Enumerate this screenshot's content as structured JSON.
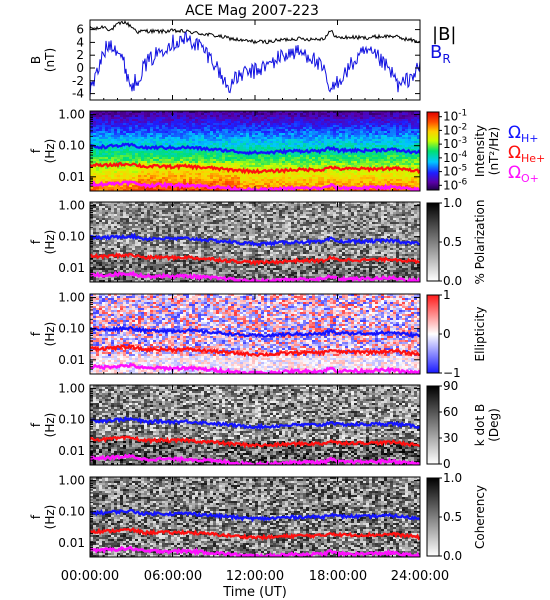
{
  "figure_title": "ACE Mag 2007-223",
  "x_tick_labels": [
    "00:00:00",
    "06:00:00",
    "12:00:00",
    "18:00:00",
    "24:00:00"
  ],
  "x_axis_label": "Time (UT)",
  "legend": {
    "b_magnitude": "|B|",
    "b_radial": "B",
    "b_radial_sub": "R",
    "omega_h": "Ω",
    "omega_h_sub": "H+",
    "omega_he": "Ω",
    "omega_he_sub": "He+",
    "omega_o": "Ω",
    "omega_o_sub": "O+"
  },
  "colors": {
    "b_magnitude": "#000000",
    "b_radial": "#1010e0",
    "omega_h": "#1414ff",
    "omega_he": "#ff1010",
    "omega_o": "#ff10ff"
  },
  "chart_data": [
    {
      "type": "line",
      "panel": "field",
      "ylabel": "B",
      "ylabel_unit": "(nT)",
      "y_tick_labels": [
        "6",
        "4",
        "2",
        "0",
        "-2",
        "-4"
      ],
      "ylim": [
        -5,
        7.5
      ],
      "xlim_hours": [
        0,
        24
      ],
      "series": [
        {
          "name": "|B|",
          "color": "#000000",
          "x_hours": [
            0,
            0.5,
            1,
            1.5,
            2,
            2.5,
            3,
            3.5,
            4,
            5,
            6,
            7,
            8,
            9,
            10,
            11,
            12,
            13,
            14,
            15,
            16,
            17,
            17.5,
            18,
            19,
            20,
            21,
            22,
            23,
            24
          ],
          "values": [
            6.3,
            6.1,
            6.5,
            5.9,
            6.8,
            7.2,
            6.5,
            5.6,
            5.8,
            5.7,
            5.8,
            5.7,
            5.4,
            5.1,
            4.7,
            4.3,
            4.1,
            4.1,
            4.4,
            4.6,
            4.5,
            4.6,
            5.8,
            4.7,
            4.8,
            4.7,
            4.9,
            5.0,
            4.5,
            4.1
          ]
        },
        {
          "name": "B",
          "color": "#1010e0",
          "x_hours": [
            0,
            0.5,
            1,
            1.5,
            2,
            2.5,
            3,
            3.5,
            4,
            4.5,
            5,
            5.5,
            6,
            7,
            8,
            9,
            9.5,
            10,
            10.5,
            11,
            12,
            13,
            14,
            15,
            16,
            17,
            17.5,
            18,
            18.5,
            19,
            20,
            21,
            22,
            22.5,
            23,
            24
          ],
          "values": [
            -3.5,
            -1.0,
            2.5,
            4.0,
            3.0,
            0.5,
            -3.0,
            -1.5,
            0.5,
            1.5,
            2.5,
            3.5,
            4.0,
            4.5,
            3.5,
            1.0,
            -1.0,
            -3.0,
            -2.0,
            -1.0,
            -0.5,
            0.5,
            2.0,
            2.5,
            2.0,
            -0.5,
            -4.0,
            -2.0,
            -1.0,
            0.5,
            2.5,
            1.5,
            -1.0,
            -3.0,
            -2.0,
            0.0
          ]
        }
      ]
    },
    {
      "type": "heatmap",
      "panel": "intensity",
      "ylabel": "f",
      "ylabel_unit": "(Hz)",
      "y_tick_labels": [
        "1.00",
        "0.10",
        "0.01"
      ],
      "y_scale": "log",
      "ylim_hz": [
        0.0035,
        1.3
      ],
      "colorbar_label": "Intensity",
      "colorbar_unit": "(nT²/Hz)",
      "colorbar_scale": "log",
      "colorbar_ticks": [
        {
          "base": "10",
          "exp": "-1"
        },
        {
          "base": "10",
          "exp": "-2"
        },
        {
          "base": "10",
          "exp": "-3"
        },
        {
          "base": "10",
          "exp": "-4"
        },
        {
          "base": "10",
          "exp": "-5"
        },
        {
          "base": "10",
          "exp": "-6"
        }
      ]
    },
    {
      "type": "heatmap",
      "panel": "polarization",
      "ylabel": "f",
      "ylabel_unit": "(Hz)",
      "y_tick_labels": [
        "1.00",
        "0.10",
        "0.01"
      ],
      "colorbar_label": "% Polarization",
      "colorbar_ticks": [
        "1.0",
        "0.5",
        "0.0"
      ],
      "colorbar_range": [
        0,
        1
      ]
    },
    {
      "type": "heatmap",
      "panel": "ellipticity",
      "ylabel": "f",
      "ylabel_unit": "(Hz)",
      "y_tick_labels": [
        "1.00",
        "0.10",
        "0.01"
      ],
      "colorbar_label": "Ellipticity",
      "colorbar_ticks": [
        "1",
        "0",
        "−1"
      ],
      "colorbar_range": [
        -1,
        1
      ]
    },
    {
      "type": "heatmap",
      "panel": "wave_normal_angle",
      "ylabel": "f",
      "ylabel_unit": "(Hz)",
      "y_tick_labels": [
        "1.00",
        "0.10",
        "0.01"
      ],
      "colorbar_label": "k dot B",
      "colorbar_unit": "(Deg)",
      "colorbar_ticks": [
        "90",
        "60",
        "30",
        "0"
      ],
      "colorbar_range": [
        0,
        90
      ]
    },
    {
      "type": "heatmap",
      "panel": "coherency",
      "ylabel": "f",
      "ylabel_unit": "(Hz)",
      "y_tick_labels": [
        "1.00",
        "0.10",
        "0.01"
      ],
      "colorbar_label": "Coherency",
      "colorbar_ticks": [
        "1.0",
        "0.5",
        "0.0"
      ],
      "colorbar_range": [
        0,
        1
      ]
    },
    {
      "type": "line",
      "panel": "gyrofrequencies",
      "x_hours": [
        0,
        1,
        2,
        3,
        4,
        5,
        6,
        7,
        8,
        9,
        10,
        11,
        12,
        13,
        14,
        15,
        16,
        17,
        17.5,
        18,
        19,
        20,
        21,
        22,
        23,
        24
      ],
      "series": [
        {
          "name": "Ω H+",
          "color": "#1414ff",
          "values_hz": [
            0.095,
            0.092,
            0.1,
            0.105,
            0.085,
            0.088,
            0.085,
            0.088,
            0.082,
            0.075,
            0.07,
            0.062,
            0.06,
            0.06,
            0.065,
            0.068,
            0.068,
            0.068,
            0.086,
            0.07,
            0.071,
            0.07,
            0.073,
            0.075,
            0.066,
            0.06
          ]
        },
        {
          "name": "Ω He+",
          "color": "#ff1010",
          "values_hz": [
            0.024,
            0.023,
            0.025,
            0.026,
            0.021,
            0.022,
            0.021,
            0.022,
            0.02,
            0.019,
            0.017,
            0.016,
            0.015,
            0.015,
            0.016,
            0.017,
            0.017,
            0.017,
            0.021,
            0.018,
            0.018,
            0.018,
            0.018,
            0.019,
            0.017,
            0.015
          ]
        },
        {
          "name": "Ω O+",
          "color": "#ff10ff",
          "values_hz": [
            0.006,
            0.0058,
            0.0063,
            0.0066,
            0.0053,
            0.0055,
            0.0053,
            0.0055,
            0.0051,
            0.0047,
            0.0044,
            0.0039,
            0.0038,
            0.0038,
            0.0041,
            0.0043,
            0.0043,
            0.0043,
            0.0054,
            0.0044,
            0.0044,
            0.0044,
            0.0046,
            0.0047,
            0.0041,
            0.0038
          ]
        }
      ]
    }
  ]
}
